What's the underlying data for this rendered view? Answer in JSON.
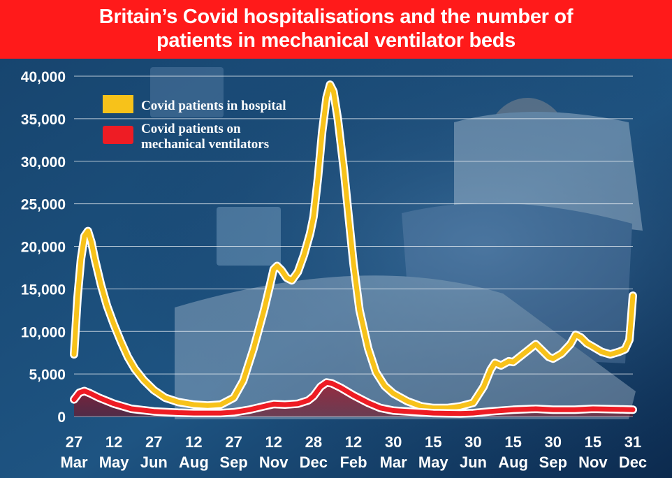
{
  "title": {
    "line1": "Britain’s Covid hospitalisations and the number of",
    "line2": "patients in mechanical ventilator beds"
  },
  "legend": {
    "hospital": "Covid patients in hospital",
    "ventilators_line1": "Covid patients on",
    "ventilators_line2": "mechanical ventilators"
  },
  "colors": {
    "hospital": "#f7c21a",
    "ventilators": "#ee1c24",
    "title_bg": "#ff1a1a",
    "background": "#0e2f57"
  },
  "chart_data": {
    "type": "line",
    "ylim": [
      0,
      40000
    ],
    "yticks": [
      0,
      5000,
      10000,
      15000,
      20000,
      25000,
      30000,
      35000,
      40000
    ],
    "ytick_labels": [
      "0",
      "5,000",
      "10,000",
      "15,000",
      "20,000",
      "25,000",
      "30,000",
      "35,000",
      "40,000"
    ],
    "xlim": [
      "2020-03-27",
      "2021-12-31"
    ],
    "xticks": [
      {
        "date": "2020-03-27",
        "day": "27",
        "month": "Mar"
      },
      {
        "date": "2020-05-12",
        "day": "12",
        "month": "May"
      },
      {
        "date": "2020-06-27",
        "day": "27",
        "month": "Jun"
      },
      {
        "date": "2020-08-12",
        "day": "12",
        "month": "Aug"
      },
      {
        "date": "2020-09-27",
        "day": "27",
        "month": "Sep"
      },
      {
        "date": "2020-11-12",
        "day": "12",
        "month": "Nov"
      },
      {
        "date": "2020-12-28",
        "day": "28",
        "month": "Dec"
      },
      {
        "date": "2021-02-12",
        "day": "12",
        "month": "Feb"
      },
      {
        "date": "2021-03-30",
        "day": "30",
        "month": "Mar"
      },
      {
        "date": "2021-05-15",
        "day": "15",
        "month": "May"
      },
      {
        "date": "2021-06-30",
        "day": "30",
        "month": "Jun"
      },
      {
        "date": "2021-08-15",
        "day": "15",
        "month": "Aug"
      },
      {
        "date": "2021-09-30",
        "day": "30",
        "month": "Sep"
      },
      {
        "date": "2021-11-15",
        "day": "15",
        "month": "Nov"
      },
      {
        "date": "2021-12-31",
        "day": "31",
        "month": "Dec"
      }
    ],
    "grid": true,
    "legend_position": "top-left",
    "series": [
      {
        "name": "Covid patients in hospital",
        "color": "#f7c21a",
        "points": [
          [
            "2020-03-27",
            7300
          ],
          [
            "2020-03-31",
            14000
          ],
          [
            "2020-04-04",
            18500
          ],
          [
            "2020-04-08",
            21200
          ],
          [
            "2020-04-12",
            21800
          ],
          [
            "2020-04-16",
            20500
          ],
          [
            "2020-04-20",
            18500
          ],
          [
            "2020-04-27",
            15500
          ],
          [
            "2020-05-04",
            13000
          ],
          [
            "2020-05-12",
            10800
          ],
          [
            "2020-05-20",
            8800
          ],
          [
            "2020-05-28",
            7000
          ],
          [
            "2020-06-05",
            5600
          ],
          [
            "2020-06-15",
            4300
          ],
          [
            "2020-06-27",
            3100
          ],
          [
            "2020-07-10",
            2200
          ],
          [
            "2020-07-25",
            1700
          ],
          [
            "2020-08-12",
            1400
          ],
          [
            "2020-08-28",
            1300
          ],
          [
            "2020-09-12",
            1400
          ],
          [
            "2020-09-27",
            2200
          ],
          [
            "2020-10-08",
            4200
          ],
          [
            "2020-10-20",
            8000
          ],
          [
            "2020-11-01",
            12500
          ],
          [
            "2020-11-08",
            15500
          ],
          [
            "2020-11-12",
            17300
          ],
          [
            "2020-11-16",
            17700
          ],
          [
            "2020-11-21",
            17200
          ],
          [
            "2020-11-27",
            16300
          ],
          [
            "2020-12-03",
            16000
          ],
          [
            "2020-12-10",
            17000
          ],
          [
            "2020-12-17",
            19000
          ],
          [
            "2020-12-24",
            21500
          ],
          [
            "2020-12-28",
            23500
          ],
          [
            "2021-01-02",
            28000
          ],
          [
            "2021-01-07",
            33500
          ],
          [
            "2021-01-12",
            37500
          ],
          [
            "2021-01-16",
            39000
          ],
          [
            "2021-01-20",
            38200
          ],
          [
            "2021-01-25",
            35000
          ],
          [
            "2021-02-01",
            29000
          ],
          [
            "2021-02-08",
            22000
          ],
          [
            "2021-02-12",
            18000
          ],
          [
            "2021-02-19",
            12500
          ],
          [
            "2021-03-01",
            8000
          ],
          [
            "2021-03-10",
            5200
          ],
          [
            "2021-03-20",
            3600
          ],
          [
            "2021-03-30",
            2700
          ],
          [
            "2021-04-15",
            1800
          ],
          [
            "2021-05-01",
            1200
          ],
          [
            "2021-05-15",
            1000
          ],
          [
            "2021-05-31",
            1000
          ],
          [
            "2021-06-15",
            1200
          ],
          [
            "2021-06-30",
            1600
          ],
          [
            "2021-07-12",
            3500
          ],
          [
            "2021-07-20",
            5500
          ],
          [
            "2021-07-25",
            6300
          ],
          [
            "2021-08-01",
            6000
          ],
          [
            "2021-08-10",
            6500
          ],
          [
            "2021-08-15",
            6400
          ],
          [
            "2021-08-25",
            7200
          ],
          [
            "2021-09-05",
            8100
          ],
          [
            "2021-09-10",
            8500
          ],
          [
            "2021-09-17",
            7800
          ],
          [
            "2021-09-25",
            7000
          ],
          [
            "2021-09-30",
            6800
          ],
          [
            "2021-10-10",
            7400
          ],
          [
            "2021-10-20",
            8500
          ],
          [
            "2021-10-26",
            9600
          ],
          [
            "2021-11-01",
            9300
          ],
          [
            "2021-11-08",
            8600
          ],
          [
            "2021-11-15",
            8200
          ],
          [
            "2021-11-25",
            7600
          ],
          [
            "2021-12-05",
            7300
          ],
          [
            "2021-12-15",
            7600
          ],
          [
            "2021-12-22",
            7900
          ],
          [
            "2021-12-27",
            9000
          ],
          [
            "2021-12-29",
            11500
          ],
          [
            "2021-12-31",
            14200
          ]
        ]
      },
      {
        "name": "Covid patients on mechanical ventilators",
        "color": "#ee1c24",
        "points": [
          [
            "2020-03-27",
            2000
          ],
          [
            "2020-04-02",
            2800
          ],
          [
            "2020-04-08",
            3000
          ],
          [
            "2020-04-15",
            2700
          ],
          [
            "2020-04-25",
            2200
          ],
          [
            "2020-05-12",
            1500
          ],
          [
            "2020-06-01",
            900
          ],
          [
            "2020-06-27",
            600
          ],
          [
            "2020-07-25",
            450
          ],
          [
            "2020-08-12",
            400
          ],
          [
            "2020-09-12",
            400
          ],
          [
            "2020-09-27",
            500
          ],
          [
            "2020-10-15",
            800
          ],
          [
            "2020-11-01",
            1200
          ],
          [
            "2020-11-12",
            1450
          ],
          [
            "2020-11-25",
            1400
          ],
          [
            "2020-12-10",
            1500
          ],
          [
            "2020-12-22",
            1900
          ],
          [
            "2020-12-28",
            2400
          ],
          [
            "2021-01-05",
            3500
          ],
          [
            "2021-01-12",
            4000
          ],
          [
            "2021-01-18",
            3900
          ],
          [
            "2021-01-28",
            3400
          ],
          [
            "2021-02-12",
            2500
          ],
          [
            "2021-03-01",
            1600
          ],
          [
            "2021-03-15",
            1000
          ],
          [
            "2021-03-30",
            700
          ],
          [
            "2021-05-15",
            400
          ],
          [
            "2021-06-15",
            350
          ],
          [
            "2021-06-30",
            400
          ],
          [
            "2021-07-20",
            600
          ],
          [
            "2021-08-15",
            800
          ],
          [
            "2021-09-10",
            900
          ],
          [
            "2021-09-30",
            800
          ],
          [
            "2021-10-25",
            800
          ],
          [
            "2021-11-15",
            900
          ],
          [
            "2021-12-15",
            850
          ],
          [
            "2021-12-31",
            800
          ]
        ]
      }
    ]
  }
}
